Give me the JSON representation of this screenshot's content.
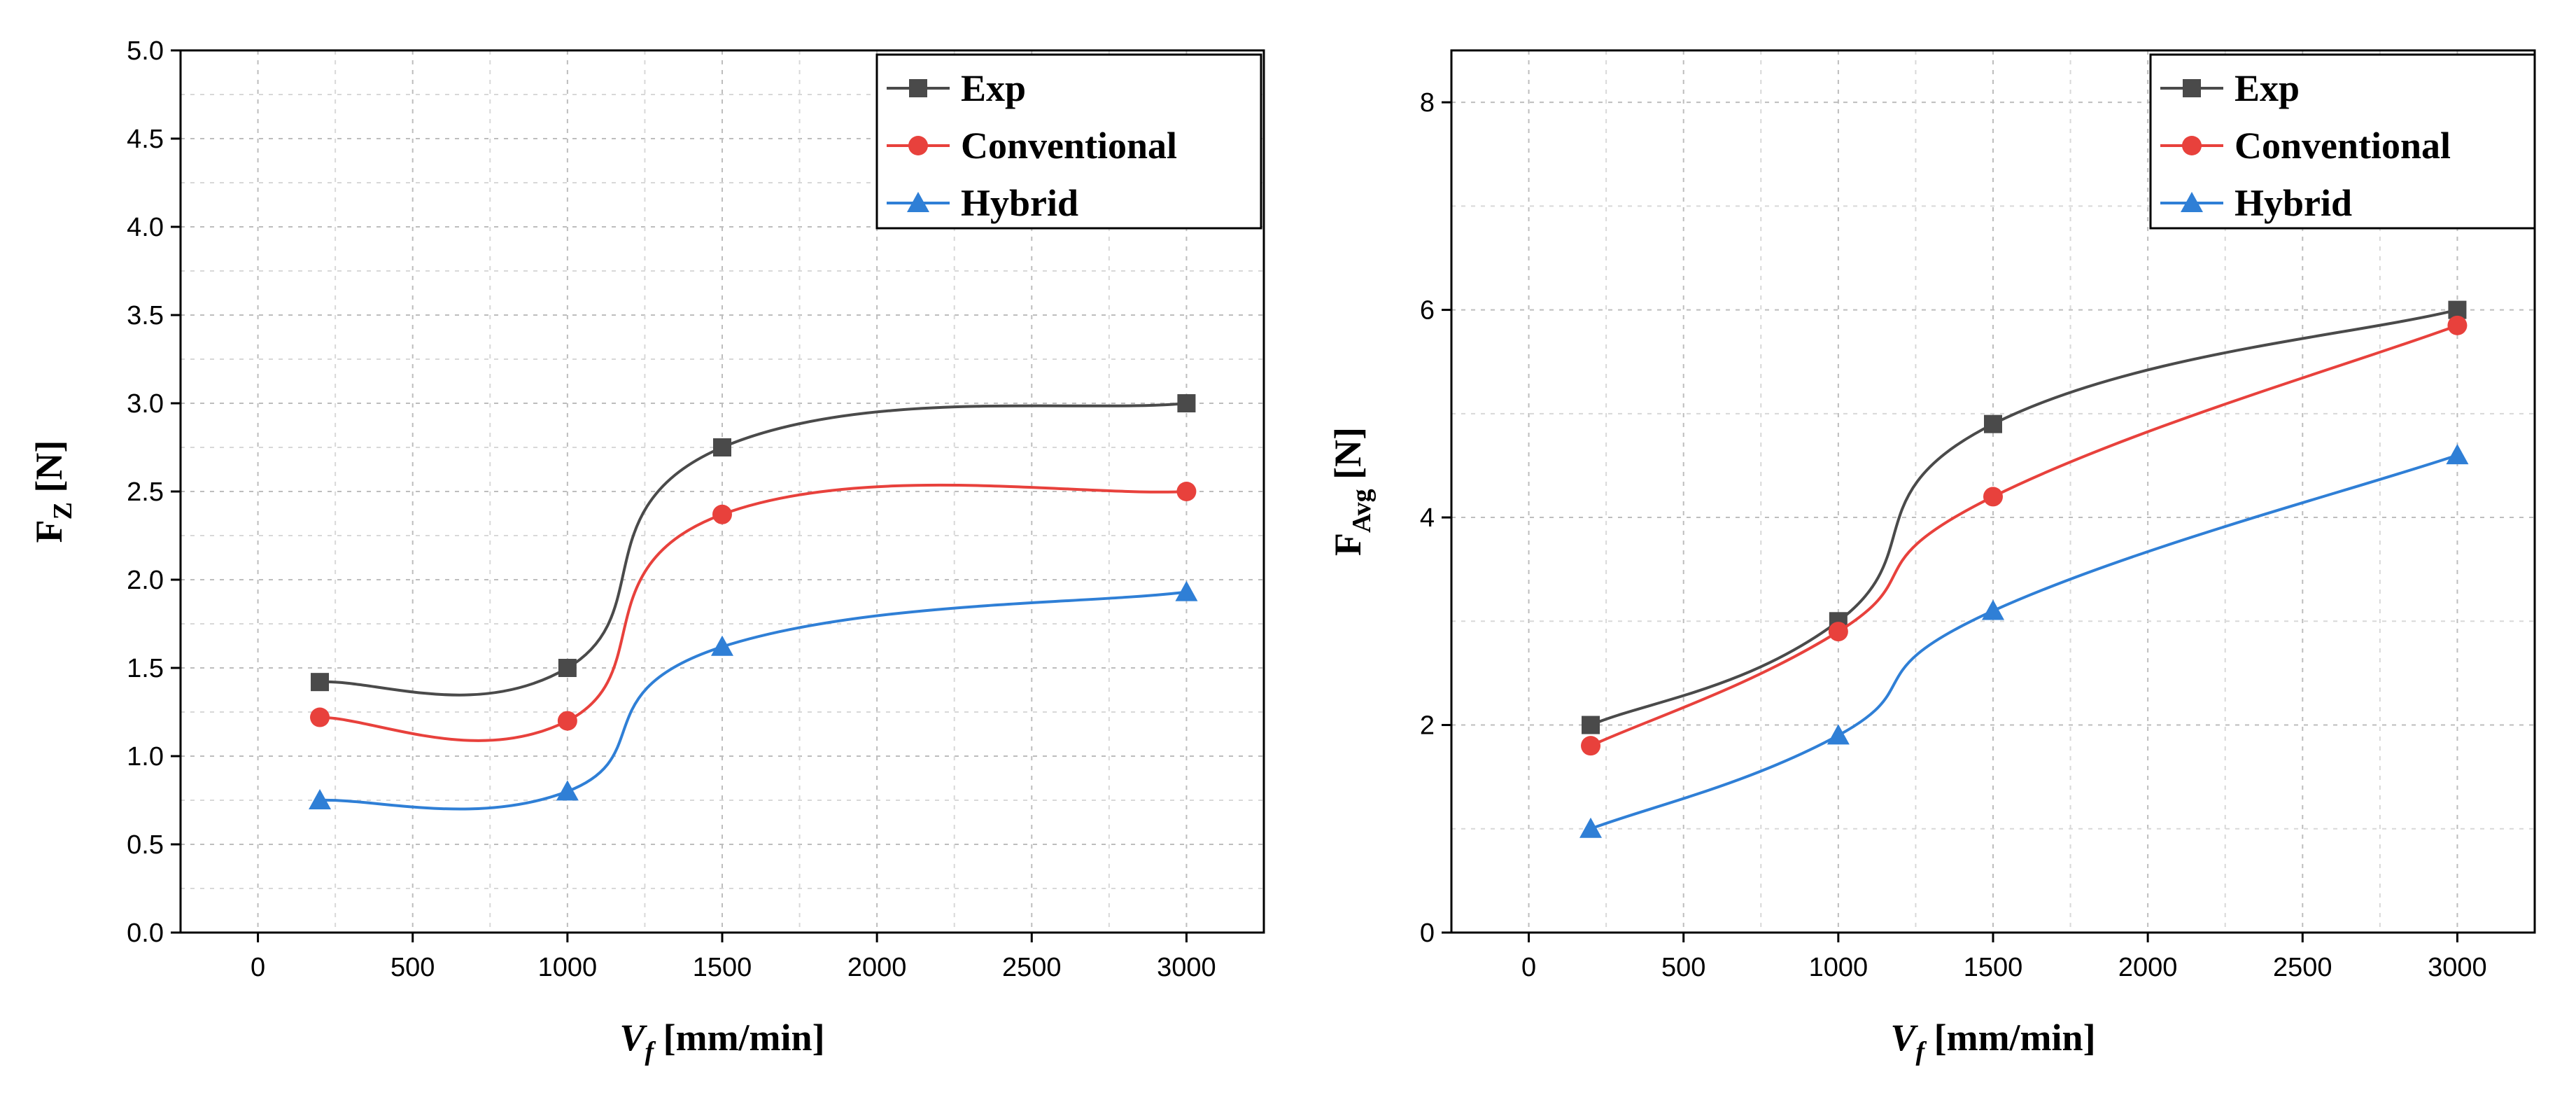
{
  "chart_data": [
    {
      "type": "line",
      "title": "",
      "xlabel": {
        "main": "V",
        "sub": "f",
        "rest": " [mm/min]"
      },
      "ylabel": {
        "main": "F",
        "sub": "Z",
        "rest": " [N]"
      },
      "xlim": [
        -250,
        3250
      ],
      "ylim": [
        0,
        5.0
      ],
      "xticks": [
        0,
        500,
        1000,
        1500,
        2000,
        2500,
        3000
      ],
      "yticks": [
        0.0,
        0.5,
        1.0,
        1.5,
        2.0,
        2.5,
        3.0,
        3.5,
        4.0,
        4.5,
        5.0
      ],
      "ytick_labels": [
        "0.0",
        "0.5",
        "1.0",
        "1.5",
        "2.0",
        "2.5",
        "3.0",
        "3.5",
        "4.0",
        "4.5",
        "5.0"
      ],
      "grid": true,
      "legend_position": "top-right",
      "x": [
        200,
        1000,
        1500,
        3000
      ],
      "series": [
        {
          "name": "Exp",
          "color": "#4a4a4a",
          "marker": "square",
          "values": [
            1.42,
            1.5,
            2.75,
            3.0
          ]
        },
        {
          "name": "Conventional",
          "color": "#e8413c",
          "marker": "circle",
          "values": [
            1.22,
            1.2,
            2.37,
            2.5
          ]
        },
        {
          "name": "Hybrid",
          "color": "#2f7fd6",
          "marker": "triangle",
          "values": [
            0.75,
            0.8,
            1.62,
            1.93
          ]
        }
      ]
    },
    {
      "type": "line",
      "title": "",
      "xlabel": {
        "main": "V",
        "sub": "f",
        "rest": " [mm/min]"
      },
      "ylabel": {
        "main": "F",
        "sub": "Avg",
        "rest": " [N]"
      },
      "xlim": [
        -250,
        3250
      ],
      "ylim": [
        0,
        8.5
      ],
      "xticks": [
        0,
        500,
        1000,
        1500,
        2000,
        2500,
        3000
      ],
      "yticks": [
        0,
        2,
        4,
        6,
        8
      ],
      "ytick_labels": [
        "0",
        "2",
        "4",
        "6",
        "8"
      ],
      "grid": true,
      "legend_position": "top-right",
      "x": [
        200,
        1000,
        1500,
        3000
      ],
      "series": [
        {
          "name": "Exp",
          "color": "#4a4a4a",
          "marker": "square",
          "values": [
            2.0,
            3.0,
            4.9,
            6.0
          ]
        },
        {
          "name": "Conventional",
          "color": "#e8413c",
          "marker": "circle",
          "values": [
            1.8,
            2.9,
            4.2,
            5.85
          ]
        },
        {
          "name": "Hybrid",
          "color": "#2f7fd6",
          "marker": "triangle",
          "values": [
            1.0,
            1.9,
            3.1,
            4.6
          ]
        }
      ]
    }
  ]
}
